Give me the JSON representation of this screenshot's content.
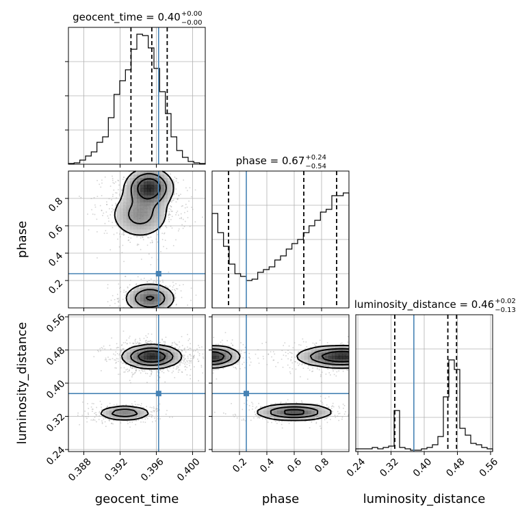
{
  "chart_data": {
    "type": "corner",
    "parameters": [
      {
        "name": "geocent_time",
        "xlabel": "geocent_time",
        "ylabel": "",
        "title_main": "geocent_time = 0.40",
        "title_sup": "+0.00",
        "title_sub": "−0.00",
        "range": [
          0.3863,
          0.4014
        ],
        "ticks": [
          0.388,
          0.392,
          0.396,
          0.4
        ],
        "tick_labels": [
          "0.388",
          "0.392",
          "0.396",
          "0.400"
        ],
        "quantiles": [
          0.3932,
          0.3955,
          0.3972
        ],
        "truth": 0.39625,
        "hist_density": [
          0.005,
          0.01,
          0.03,
          0.06,
          0.09,
          0.16,
          0.2,
          0.34,
          0.51,
          0.61,
          0.69,
          0.84,
          0.95,
          0.94,
          0.85,
          0.7,
          0.53,
          0.37,
          0.2,
          0.1,
          0.05,
          0.02,
          0.01,
          0.005
        ]
      },
      {
        "name": "phase",
        "xlabel": "phase",
        "ylabel": "phase",
        "title_main": "phase = 0.67",
        "title_sup": "+0.24",
        "title_sub": "−0.54",
        "range": [
          0.0,
          1.0
        ],
        "ticks": [
          0.2,
          0.4,
          0.6,
          0.8
        ],
        "tick_labels": [
          "0.2",
          "0.4",
          "0.6",
          "0.8"
        ],
        "quantiles": [
          0.12,
          0.67,
          0.91
        ],
        "truth": 0.25,
        "hist_density": [
          0.69,
          0.55,
          0.45,
          0.32,
          0.25,
          0.23,
          0.2,
          0.21,
          0.26,
          0.28,
          0.3,
          0.35,
          0.38,
          0.43,
          0.47,
          0.5,
          0.55,
          0.6,
          0.64,
          0.7,
          0.72,
          0.82,
          0.82,
          0.84
        ]
      },
      {
        "name": "luminosity_distance",
        "xlabel": "luminosity_distance",
        "ylabel": "luminosity_distance",
        "title_main": "luminosity_distance = 0.46",
        "title_sup": "+0.02",
        "title_sub": "−0.13",
        "range": [
          0.235,
          0.565
        ],
        "ticks": [
          0.24,
          0.32,
          0.4,
          0.48,
          0.56
        ],
        "tick_labels": [
          "0.24",
          "0.32",
          "0.40",
          "0.48",
          "0.56"
        ],
        "quantiles": [
          0.329,
          0.457,
          0.478
        ],
        "truth": 0.375,
        "hist_density": [
          0.02,
          0.02,
          0.02,
          0.03,
          0.02,
          0.03,
          0.04,
          0.3,
          0.03,
          0.02,
          0.01,
          0.01,
          0.02,
          0.03,
          0.05,
          0.11,
          0.4,
          0.67,
          0.6,
          0.17,
          0.12,
          0.06,
          0.05,
          0.03,
          0.02
        ]
      }
    ],
    "hist_ylim": [
      0,
      1.0
    ],
    "hist_yticks": [
      0.25,
      0.5,
      0.75
    ],
    "colors": {
      "truth": "#4682b4",
      "lines": "#000000",
      "points": "#9e9e9e"
    },
    "grid": true
  }
}
